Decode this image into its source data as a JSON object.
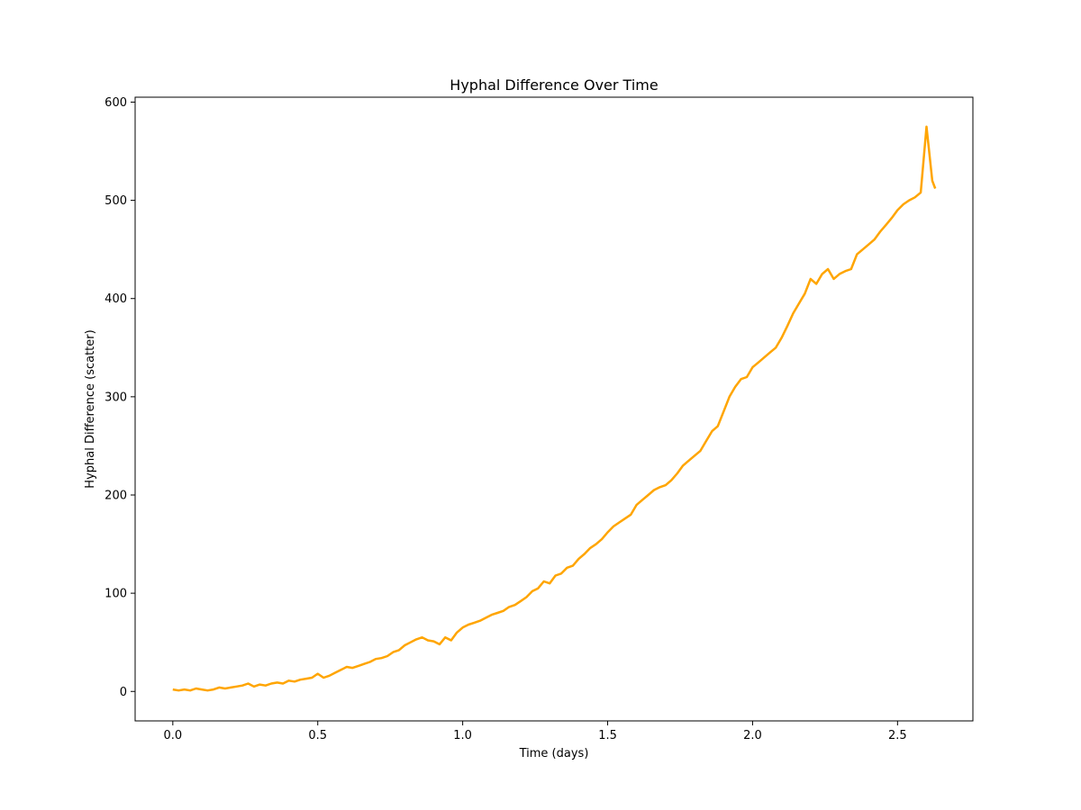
{
  "chart_data": {
    "type": "line",
    "title": "Hyphal Difference Over Time",
    "xlabel": "Time (days)",
    "ylabel": "Hyphal Difference (scatter)",
    "xlim": [
      -0.13,
      2.76
    ],
    "ylim": [
      -30,
      605
    ],
    "xticks": [
      0.0,
      0.5,
      1.0,
      1.5,
      2.0,
      2.5
    ],
    "xtick_labels": [
      "0.0",
      "0.5",
      "1.0",
      "1.5",
      "2.0",
      "2.5"
    ],
    "yticks": [
      0,
      100,
      200,
      300,
      400,
      500,
      600
    ],
    "ytick_labels": [
      "0",
      "100",
      "200",
      "300",
      "400",
      "500",
      "600"
    ],
    "grid": false,
    "series": [
      {
        "color": "#FFA500",
        "x": [
          0.0,
          0.02,
          0.04,
          0.06,
          0.08,
          0.1,
          0.12,
          0.14,
          0.16,
          0.18,
          0.2,
          0.22,
          0.24,
          0.26,
          0.28,
          0.3,
          0.32,
          0.34,
          0.36,
          0.38,
          0.4,
          0.42,
          0.44,
          0.46,
          0.48,
          0.5,
          0.52,
          0.54,
          0.56,
          0.58,
          0.6,
          0.62,
          0.64,
          0.66,
          0.68,
          0.7,
          0.72,
          0.74,
          0.76,
          0.78,
          0.8,
          0.82,
          0.84,
          0.86,
          0.88,
          0.9,
          0.92,
          0.94,
          0.96,
          0.98,
          1.0,
          1.02,
          1.04,
          1.06,
          1.08,
          1.1,
          1.12,
          1.14,
          1.16,
          1.18,
          1.2,
          1.22,
          1.24,
          1.26,
          1.28,
          1.3,
          1.32,
          1.34,
          1.36,
          1.38,
          1.4,
          1.42,
          1.44,
          1.46,
          1.48,
          1.5,
          1.52,
          1.54,
          1.56,
          1.58,
          1.6,
          1.62,
          1.64,
          1.66,
          1.68,
          1.7,
          1.72,
          1.74,
          1.76,
          1.78,
          1.8,
          1.82,
          1.84,
          1.86,
          1.88,
          1.9,
          1.92,
          1.94,
          1.96,
          1.98,
          2.0,
          2.02,
          2.04,
          2.06,
          2.08,
          2.1,
          2.12,
          2.14,
          2.16,
          2.18,
          2.2,
          2.22,
          2.24,
          2.26,
          2.28,
          2.3,
          2.32,
          2.34,
          2.36,
          2.38,
          2.4,
          2.42,
          2.44,
          2.46,
          2.48,
          2.5,
          2.52,
          2.54,
          2.56,
          2.58,
          2.6,
          2.62,
          2.63
        ],
        "y": [
          2,
          1,
          2,
          1,
          3,
          2,
          1,
          2,
          4,
          3,
          4,
          5,
          6,
          8,
          5,
          7,
          6,
          8,
          9,
          8,
          11,
          10,
          12,
          13,
          14,
          18,
          14,
          16,
          19,
          22,
          25,
          24,
          26,
          28,
          30,
          33,
          34,
          36,
          40,
          42,
          47,
          50,
          53,
          55,
          52,
          51,
          48,
          55,
          52,
          60,
          65,
          68,
          70,
          72,
          75,
          78,
          80,
          82,
          86,
          88,
          92,
          96,
          102,
          105,
          112,
          110,
          118,
          120,
          126,
          128,
          135,
          140,
          146,
          150,
          155,
          162,
          168,
          172,
          176,
          180,
          190,
          195,
          200,
          205,
          208,
          210,
          215,
          222,
          230,
          235,
          240,
          245,
          255,
          265,
          270,
          285,
          300,
          310,
          318,
          320,
          330,
          335,
          340,
          345,
          350,
          360,
          372,
          385,
          395,
          405,
          420,
          415,
          425,
          430,
          420,
          425,
          428,
          430,
          445,
          450,
          455,
          460,
          468,
          475,
          482,
          490,
          496,
          500,
          503,
          508,
          575,
          520,
          512
        ]
      }
    ]
  }
}
